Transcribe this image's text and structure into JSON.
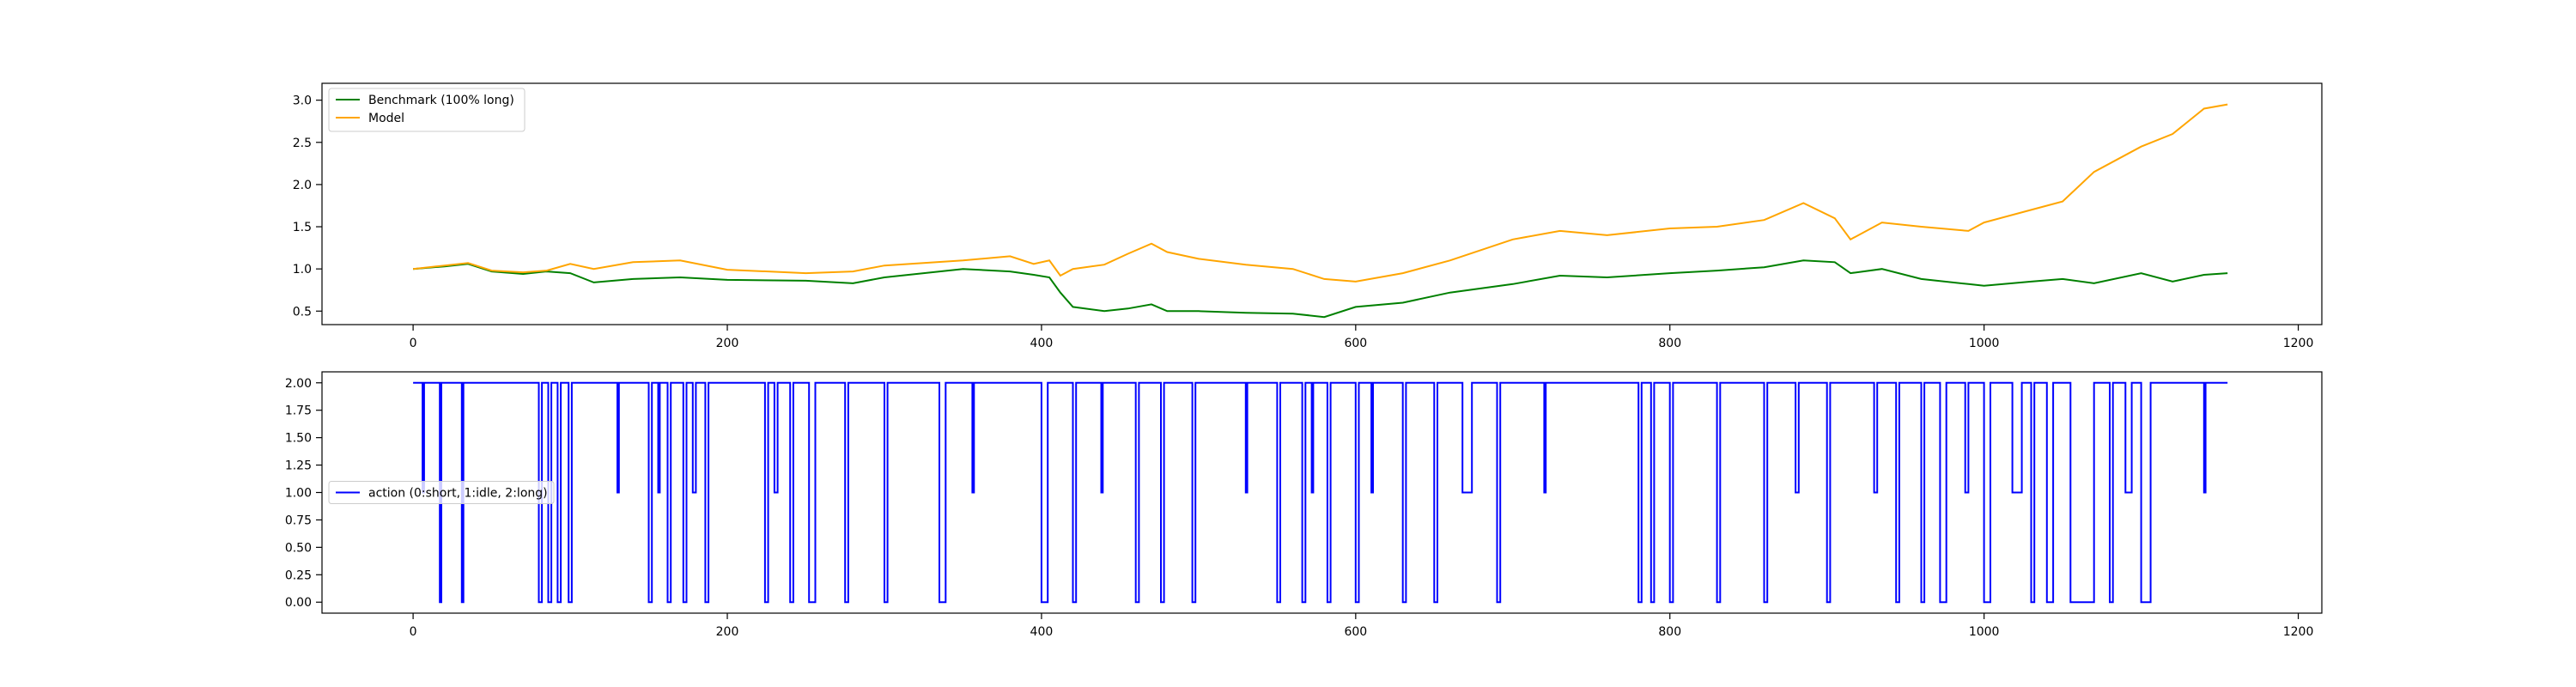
{
  "chart_data": [
    {
      "type": "line",
      "title": "",
      "xlabel": "",
      "ylabel": "",
      "xlim": [
        -58,
        1215
      ],
      "ylim": [
        0.34,
        3.2
      ],
      "xticks": [
        0,
        200,
        400,
        600,
        800,
        1000,
        1200
      ],
      "yticks": [
        0.5,
        1.0,
        1.5,
        2.0,
        2.5,
        3.0
      ],
      "ytick_labels": [
        "0.5",
        "1.0",
        "1.5",
        "2.0",
        "2.5",
        "3.0"
      ],
      "grid": false,
      "legend_position": "upper-left",
      "series": [
        {
          "name": "Benchmark (100% long)",
          "color": "#008000",
          "points": [
            [
              0,
              1.0
            ],
            [
              20,
              1.03
            ],
            [
              35,
              1.06
            ],
            [
              50,
              0.97
            ],
            [
              70,
              0.94
            ],
            [
              85,
              0.97
            ],
            [
              100,
              0.95
            ],
            [
              115,
              0.84
            ],
            [
              140,
              0.88
            ],
            [
              170,
              0.9
            ],
            [
              200,
              0.87
            ],
            [
              250,
              0.86
            ],
            [
              280,
              0.83
            ],
            [
              300,
              0.9
            ],
            [
              350,
              1.0
            ],
            [
              380,
              0.97
            ],
            [
              395,
              0.93
            ],
            [
              405,
              0.9
            ],
            [
              412,
              0.72
            ],
            [
              420,
              0.55
            ],
            [
              440,
              0.5
            ],
            [
              455,
              0.53
            ],
            [
              470,
              0.58
            ],
            [
              480,
              0.5
            ],
            [
              500,
              0.5
            ],
            [
              530,
              0.48
            ],
            [
              560,
              0.47
            ],
            [
              580,
              0.43
            ],
            [
              600,
              0.55
            ],
            [
              630,
              0.6
            ],
            [
              660,
              0.72
            ],
            [
              700,
              0.82
            ],
            [
              730,
              0.92
            ],
            [
              760,
              0.9
            ],
            [
              800,
              0.95
            ],
            [
              830,
              0.98
            ],
            [
              860,
              1.02
            ],
            [
              885,
              1.1
            ],
            [
              905,
              1.08
            ],
            [
              915,
              0.95
            ],
            [
              935,
              1.0
            ],
            [
              960,
              0.88
            ],
            [
              990,
              0.82
            ],
            [
              1000,
              0.8
            ],
            [
              1030,
              0.85
            ],
            [
              1050,
              0.88
            ],
            [
              1070,
              0.83
            ],
            [
              1100,
              0.95
            ],
            [
              1120,
              0.85
            ],
            [
              1140,
              0.93
            ],
            [
              1155,
              0.95
            ]
          ]
        },
        {
          "name": "Model",
          "color": "#FFA500",
          "points": [
            [
              0,
              1.0
            ],
            [
              20,
              1.04
            ],
            [
              35,
              1.07
            ],
            [
              50,
              0.98
            ],
            [
              70,
              0.96
            ],
            [
              85,
              0.98
            ],
            [
              100,
              1.06
            ],
            [
              115,
              1.0
            ],
            [
              140,
              1.08
            ],
            [
              170,
              1.1
            ],
            [
              200,
              0.99
            ],
            [
              250,
              0.95
            ],
            [
              280,
              0.97
            ],
            [
              300,
              1.04
            ],
            [
              350,
              1.1
            ],
            [
              380,
              1.15
            ],
            [
              395,
              1.06
            ],
            [
              405,
              1.1
            ],
            [
              412,
              0.92
            ],
            [
              420,
              1.0
            ],
            [
              440,
              1.05
            ],
            [
              455,
              1.18
            ],
            [
              470,
              1.3
            ],
            [
              480,
              1.2
            ],
            [
              500,
              1.12
            ],
            [
              530,
              1.05
            ],
            [
              560,
              1.0
            ],
            [
              580,
              0.88
            ],
            [
              600,
              0.85
            ],
            [
              630,
              0.95
            ],
            [
              660,
              1.1
            ],
            [
              700,
              1.35
            ],
            [
              730,
              1.45
            ],
            [
              760,
              1.4
            ],
            [
              800,
              1.48
            ],
            [
              830,
              1.5
            ],
            [
              860,
              1.58
            ],
            [
              885,
              1.78
            ],
            [
              905,
              1.6
            ],
            [
              915,
              1.35
            ],
            [
              935,
              1.55
            ],
            [
              960,
              1.5
            ],
            [
              990,
              1.45
            ],
            [
              1000,
              1.55
            ],
            [
              1030,
              1.7
            ],
            [
              1050,
              1.8
            ],
            [
              1070,
              2.15
            ],
            [
              1100,
              2.45
            ],
            [
              1120,
              2.6
            ],
            [
              1140,
              2.9
            ],
            [
              1155,
              2.95
            ]
          ]
        }
      ]
    },
    {
      "type": "line",
      "title": "",
      "xlabel": "",
      "ylabel": "",
      "xlim": [
        -58,
        1215
      ],
      "ylim": [
        -0.1,
        2.1
      ],
      "xticks": [
        0,
        200,
        400,
        600,
        800,
        1000,
        1200
      ],
      "yticks": [
        0.0,
        0.25,
        0.5,
        0.75,
        1.0,
        1.25,
        1.5,
        1.75,
        2.0
      ],
      "ytick_labels": [
        "0.00",
        "0.25",
        "0.50",
        "0.75",
        "1.00",
        "1.25",
        "1.50",
        "1.75",
        "2.00"
      ],
      "grid": false,
      "legend_position": "center-left",
      "series": [
        {
          "name": "action (0:short, 1:idle, 2:long)",
          "color": "#0000FF",
          "steps": [
            [
              0,
              2
            ],
            [
              6,
              1
            ],
            [
              7,
              2
            ],
            [
              17,
              0
            ],
            [
              18,
              2
            ],
            [
              31,
              0
            ],
            [
              32,
              2
            ],
            [
              80,
              0
            ],
            [
              82,
              2
            ],
            [
              86,
              0
            ],
            [
              88,
              2
            ],
            [
              92,
              0
            ],
            [
              94,
              2
            ],
            [
              99,
              0
            ],
            [
              101,
              2
            ],
            [
              130,
              1
            ],
            [
              131,
              2
            ],
            [
              150,
              0
            ],
            [
              152,
              2
            ],
            [
              156,
              1
            ],
            [
              157,
              2
            ],
            [
              162,
              0
            ],
            [
              164,
              2
            ],
            [
              172,
              0
            ],
            [
              174,
              2
            ],
            [
              178,
              1
            ],
            [
              180,
              2
            ],
            [
              186,
              0
            ],
            [
              188,
              2
            ],
            [
              224,
              0
            ],
            [
              226,
              2
            ],
            [
              230,
              1
            ],
            [
              232,
              2
            ],
            [
              240,
              0
            ],
            [
              242,
              2
            ],
            [
              252,
              0
            ],
            [
              256,
              2
            ],
            [
              275,
              0
            ],
            [
              277,
              2
            ],
            [
              300,
              0
            ],
            [
              302,
              2
            ],
            [
              335,
              0
            ],
            [
              339,
              2
            ],
            [
              356,
              1
            ],
            [
              357,
              2
            ],
            [
              400,
              0
            ],
            [
              404,
              2
            ],
            [
              420,
              0
            ],
            [
              422,
              2
            ],
            [
              438,
              1
            ],
            [
              439,
              2
            ],
            [
              460,
              0
            ],
            [
              462,
              2
            ],
            [
              476,
              0
            ],
            [
              478,
              2
            ],
            [
              496,
              0
            ],
            [
              498,
              2
            ],
            [
              530,
              1
            ],
            [
              531,
              2
            ],
            [
              550,
              0
            ],
            [
              552,
              2
            ],
            [
              566,
              0
            ],
            [
              568,
              2
            ],
            [
              572,
              1
            ],
            [
              573,
              2
            ],
            [
              582,
              0
            ],
            [
              584,
              2
            ],
            [
              600,
              0
            ],
            [
              602,
              2
            ],
            [
              610,
              1
            ],
            [
              611,
              2
            ],
            [
              630,
              0
            ],
            [
              632,
              2
            ],
            [
              650,
              0
            ],
            [
              652,
              2
            ],
            [
              668,
              1
            ],
            [
              674,
              2
            ],
            [
              690,
              0
            ],
            [
              692,
              2
            ],
            [
              720,
              1
            ],
            [
              721,
              2
            ],
            [
              780,
              0
            ],
            [
              782,
              2
            ],
            [
              788,
              0
            ],
            [
              790,
              2
            ],
            [
              800,
              0
            ],
            [
              802,
              2
            ],
            [
              830,
              0
            ],
            [
              832,
              2
            ],
            [
              860,
              0
            ],
            [
              862,
              2
            ],
            [
              880,
              1
            ],
            [
              882,
              2
            ],
            [
              900,
              0
            ],
            [
              902,
              2
            ],
            [
              930,
              1
            ],
            [
              932,
              2
            ],
            [
              944,
              0
            ],
            [
              946,
              2
            ],
            [
              960,
              0
            ],
            [
              962,
              2
            ],
            [
              972,
              0
            ],
            [
              976,
              2
            ],
            [
              988,
              1
            ],
            [
              990,
              2
            ],
            [
              1000,
              0
            ],
            [
              1004,
              2
            ],
            [
              1018,
              1
            ],
            [
              1024,
              2
            ],
            [
              1030,
              0
            ],
            [
              1032,
              2
            ],
            [
              1040,
              0
            ],
            [
              1044,
              2
            ],
            [
              1055,
              0
            ],
            [
              1070,
              2
            ],
            [
              1080,
              0
            ],
            [
              1082,
              2
            ],
            [
              1090,
              1
            ],
            [
              1094,
              2
            ],
            [
              1100,
              0
            ],
            [
              1106,
              2
            ],
            [
              1140,
              1
            ],
            [
              1141,
              2
            ],
            [
              1155,
              2
            ]
          ]
        }
      ]
    }
  ]
}
